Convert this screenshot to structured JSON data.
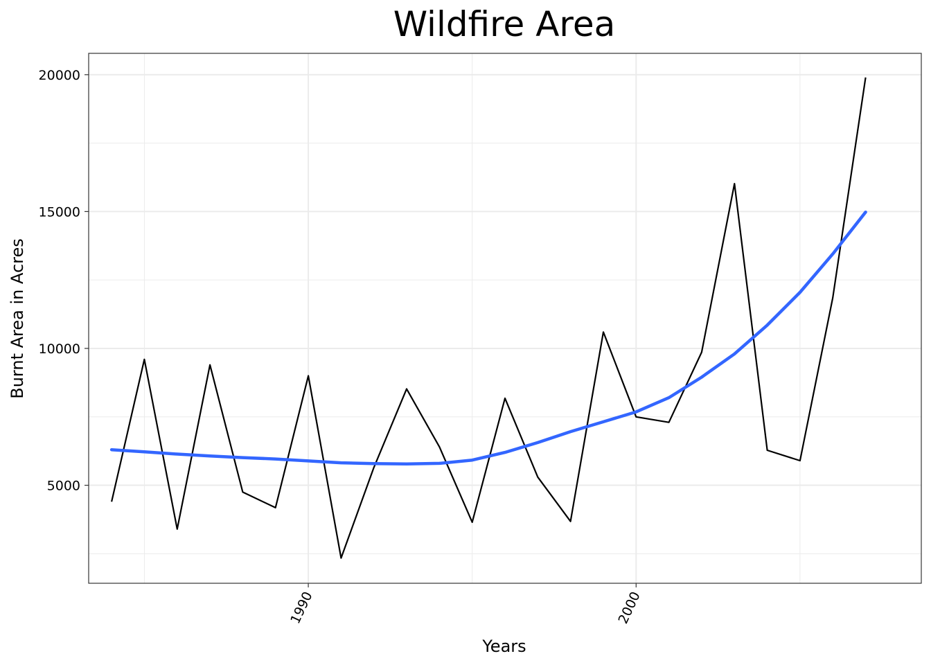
{
  "chart_data": {
    "type": "line",
    "title": "Wildfire Area",
    "xlabel": "Years",
    "ylabel": "Burnt Area in Acres",
    "xlim": [
      1983.3,
      2008.7
    ],
    "ylim": [
      1420,
      20780
    ],
    "x_ticks": [
      1990,
      2000
    ],
    "y_ticks": [
      5000,
      10000,
      15000,
      20000
    ],
    "x_tick_labels": [
      "1990",
      "2000"
    ],
    "y_tick_labels": [
      "5000",
      "10000",
      "15000",
      "20000"
    ],
    "grid": true,
    "series": [
      {
        "kind": "observed",
        "color": "#000000",
        "x": [
          1984,
          1985,
          1986,
          1987,
          1988,
          1989,
          1990,
          1991,
          1992,
          1993,
          1994,
          1995,
          1996,
          1997,
          1998,
          1999,
          2000,
          2001,
          2002,
          2003,
          2004,
          2005,
          2006,
          2007
        ],
        "values": [
          4400,
          9600,
          3400,
          9400,
          4750,
          4180,
          9000,
          2340,
          5650,
          8520,
          6400,
          3650,
          8180,
          5300,
          3680,
          10600,
          7500,
          7300,
          9860,
          16020,
          6280,
          5900,
          11850,
          19900
        ]
      },
      {
        "kind": "smooth",
        "color": "#3366ff",
        "x": [
          1984,
          1985,
          1986,
          1987,
          1988,
          1989,
          1990,
          1991,
          1992,
          1993,
          1994,
          1995,
          1996,
          1997,
          1998,
          1999,
          2000,
          2001,
          2002,
          2003,
          2004,
          2005,
          2006,
          2007
        ],
        "values": [
          6300,
          6220,
          6140,
          6070,
          6010,
          5960,
          5890,
          5820,
          5790,
          5780,
          5800,
          5920,
          6200,
          6560,
          6960,
          7320,
          7680,
          8200,
          8950,
          9800,
          10850,
          12050,
          13450,
          14980
        ]
      }
    ]
  }
}
